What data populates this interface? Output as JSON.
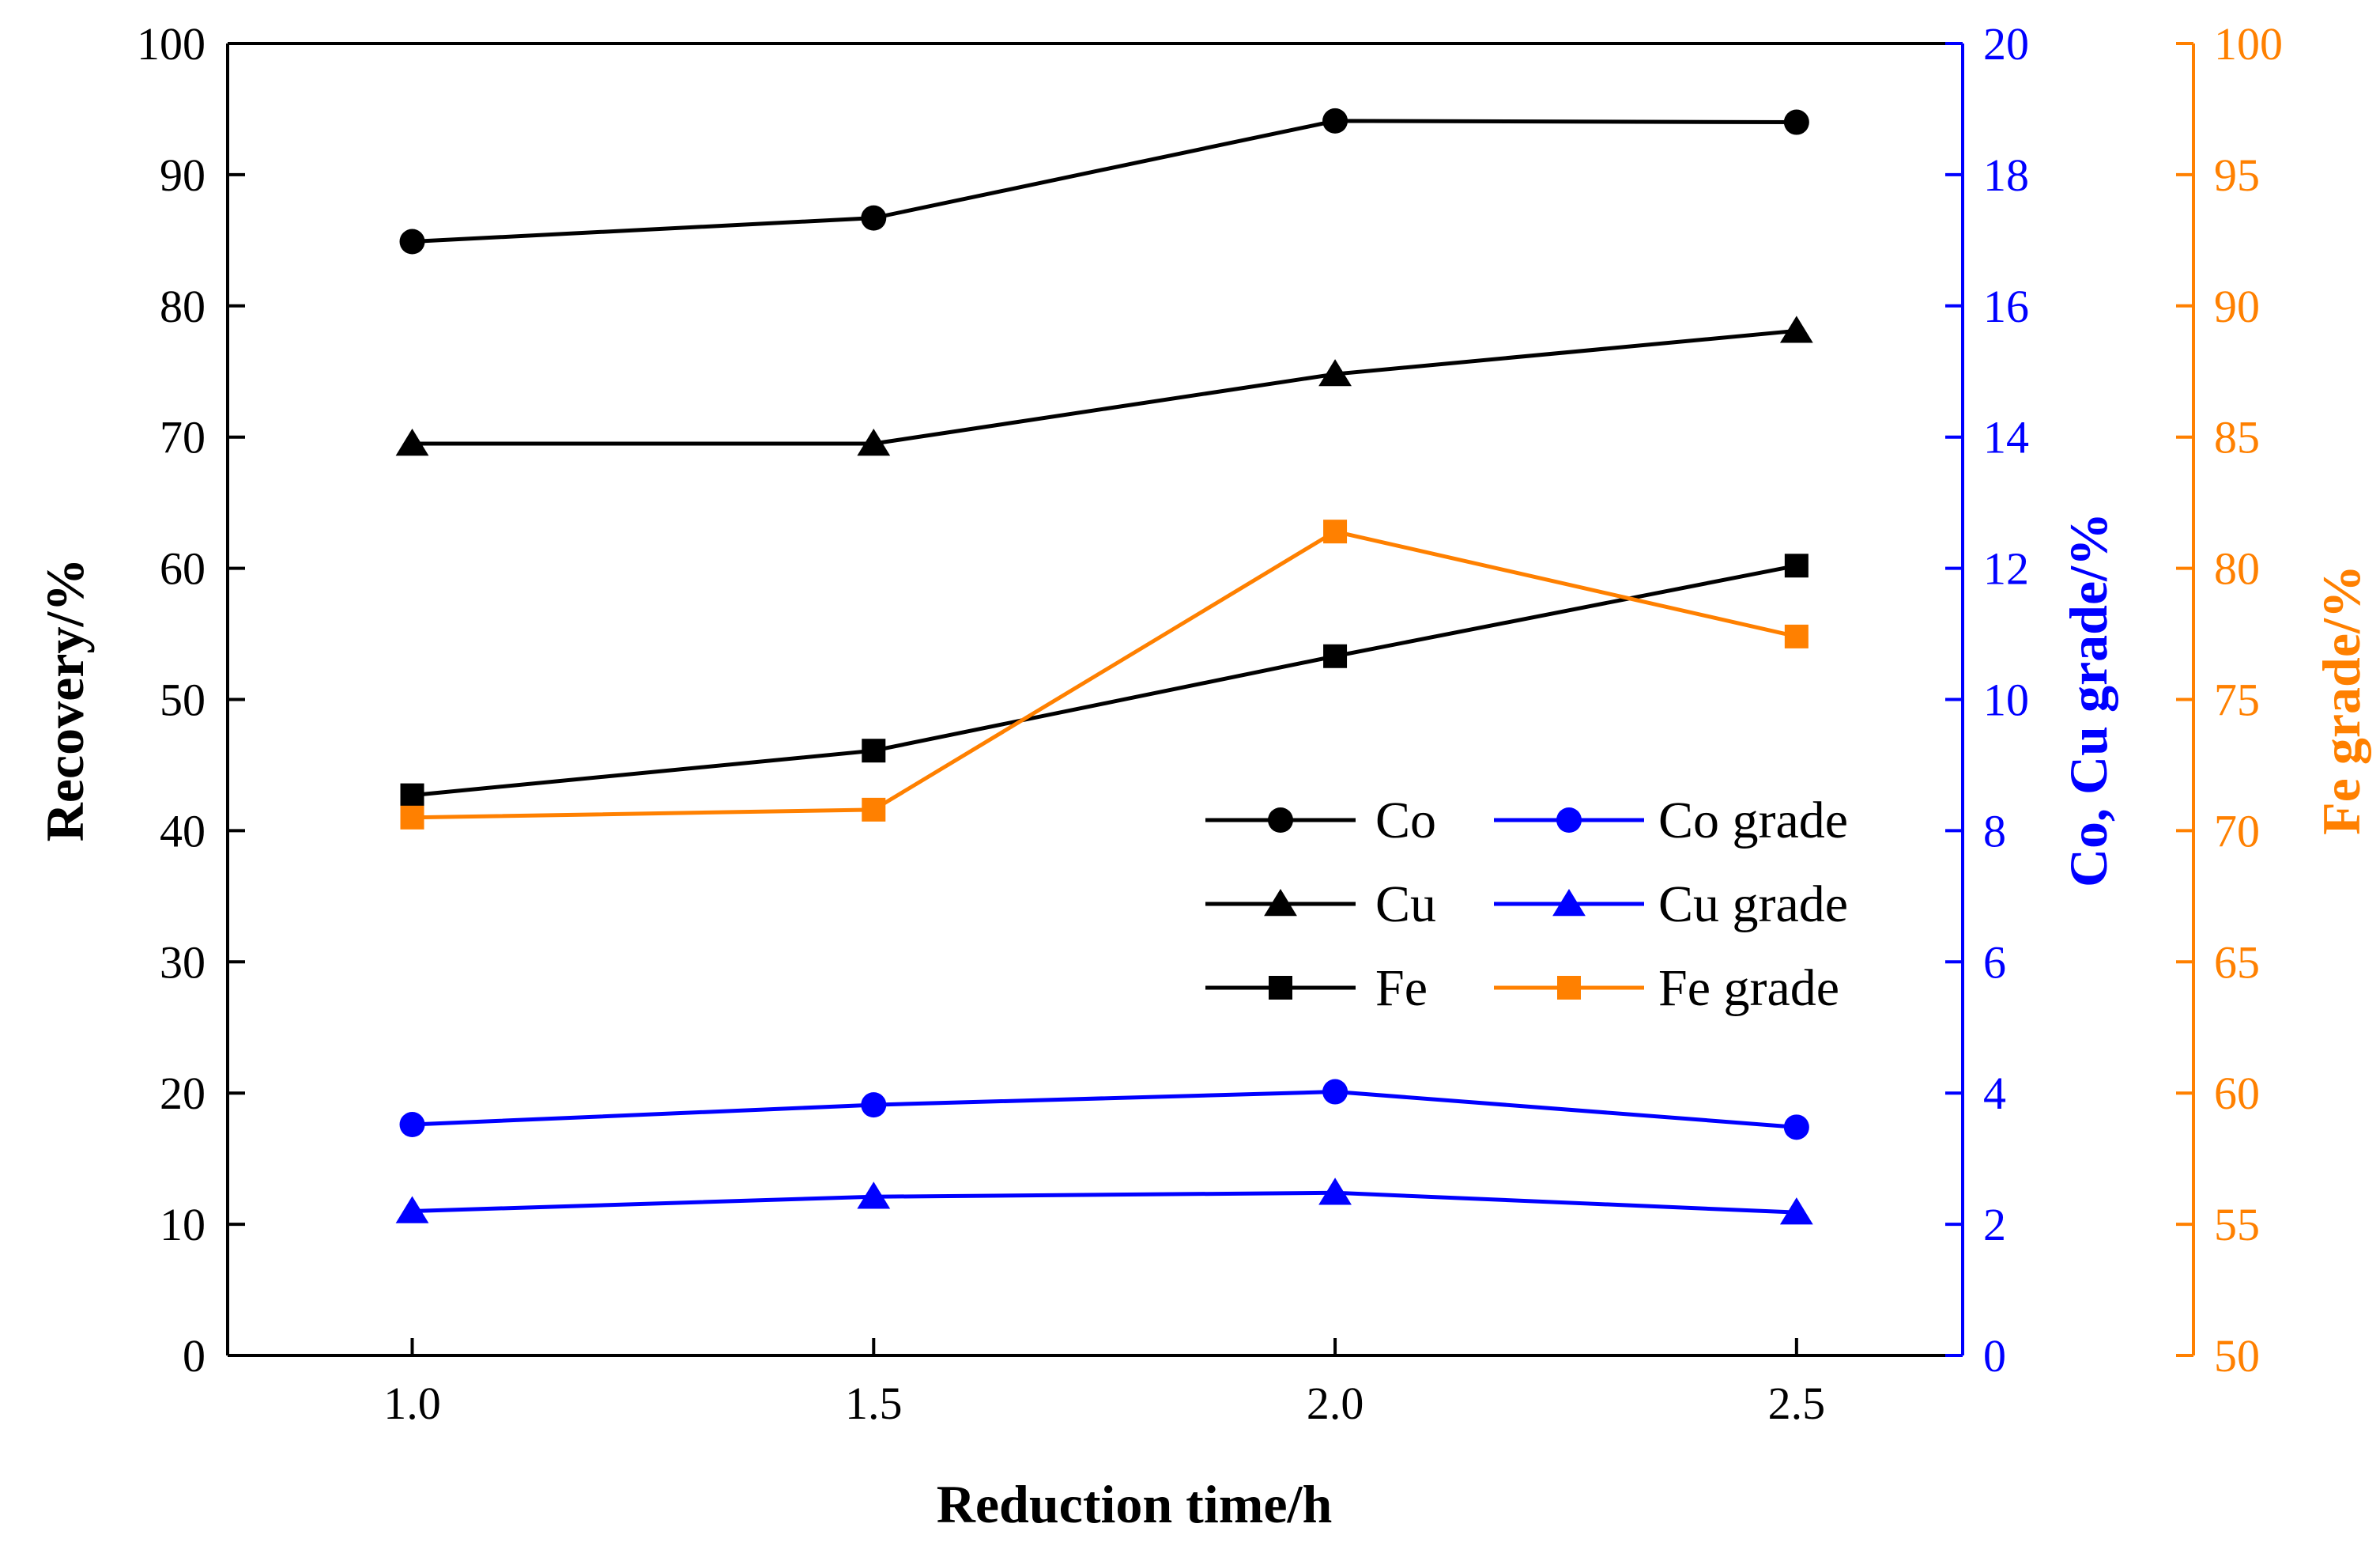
{
  "chart_data": {
    "type": "line",
    "x": [
      1.0,
      1.5,
      2.0,
      2.5
    ],
    "x_tick_labels": [
      "1.0",
      "1.5",
      "2.0",
      "2.5"
    ],
    "xlim": [
      0.8,
      2.68
    ],
    "xlabel": "Reduction time/h",
    "axes": {
      "left": {
        "label": "Recovery/%",
        "ylim": [
          0,
          100
        ],
        "ticks": [
          "0",
          "10",
          "20",
          "30",
          "40",
          "50",
          "60",
          "70",
          "80",
          "90",
          "100"
        ],
        "color": "#000000"
      },
      "right_inner": {
        "label": "Co, Cu grade/%",
        "ylim": [
          0,
          20
        ],
        "ticks": [
          "0",
          "2",
          "4",
          "6",
          "8",
          "10",
          "12",
          "14",
          "16",
          "18",
          "20"
        ],
        "color": "#0000ff"
      },
      "right_outer": {
        "label": "Fe grade/%",
        "ylim": [
          50,
          100
        ],
        "ticks": [
          "50",
          "55",
          "60",
          "65",
          "70",
          "75",
          "80",
          "85",
          "90",
          "95",
          "100"
        ],
        "color": "#ff8000"
      }
    },
    "series": [
      {
        "name": "Co",
        "axis": "left",
        "marker": "circle",
        "color": "#000000",
        "values": [
          84.9,
          86.7,
          94.1,
          94.0
        ]
      },
      {
        "name": "Cu",
        "axis": "left",
        "marker": "triangle",
        "color": "#000000",
        "values": [
          69.5,
          69.5,
          74.8,
          78.1
        ]
      },
      {
        "name": "Fe",
        "axis": "left",
        "marker": "square",
        "color": "#000000",
        "values": [
          42.7,
          46.1,
          53.3,
          60.2
        ]
      },
      {
        "name": "Co grade",
        "axis": "right_inner",
        "marker": "circle",
        "color": "#0000ff",
        "values": [
          3.52,
          3.82,
          4.02,
          3.48
        ]
      },
      {
        "name": "Cu grade",
        "axis": "right_inner",
        "marker": "triangle",
        "color": "#0000ff",
        "values": [
          2.2,
          2.42,
          2.48,
          2.18
        ]
      },
      {
        "name": "Fe grade",
        "axis": "right_outer",
        "marker": "square",
        "color": "#ff8000",
        "values": [
          70.5,
          70.8,
          81.4,
          77.4
        ]
      }
    ],
    "legend_position": "center-right",
    "grid": false
  }
}
